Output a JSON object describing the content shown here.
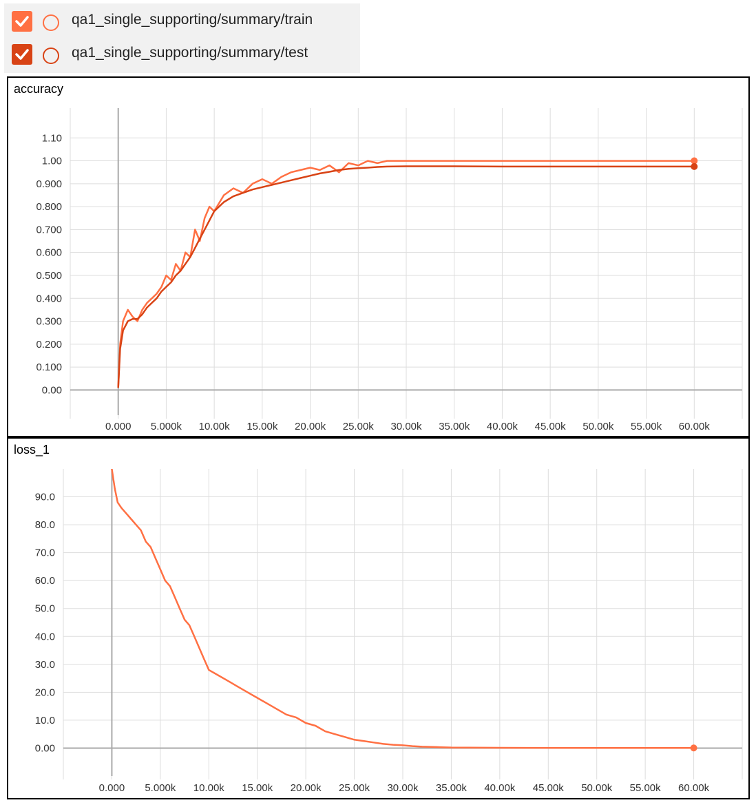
{
  "legend": {
    "runs": [
      {
        "label": "qa1_single_supporting/summary/train",
        "color": "#ff7043",
        "checked": true
      },
      {
        "label": "qa1_single_supporting/summary/test",
        "color": "#d84315",
        "checked": true
      }
    ]
  },
  "chart_data": [
    {
      "type": "line",
      "title": "accuracy",
      "xlabel": "",
      "ylabel": "",
      "x_ticks": [
        "0.000",
        "5.000k",
        "10.00k",
        "15.00k",
        "20.00k",
        "25.00k",
        "30.00k",
        "35.00k",
        "40.00k",
        "45.00k",
        "50.00k",
        "55.00k",
        "60.00k"
      ],
      "y_ticks": [
        "0.00",
        "0.100",
        "0.200",
        "0.300",
        "0.400",
        "0.500",
        "0.600",
        "0.700",
        "0.800",
        "0.900",
        "1.00",
        "1.10"
      ],
      "xlim": [
        -5000,
        65000
      ],
      "ylim": [
        -0.11,
        1.23
      ],
      "grid": true,
      "series": [
        {
          "name": "qa1_single_supporting/summary/train",
          "color": "#ff7043",
          "x": [
            0,
            200,
            500,
            1000,
            1500,
            2000,
            2500,
            3000,
            3500,
            4000,
            4500,
            5000,
            5500,
            6000,
            6500,
            7000,
            7500,
            8000,
            8500,
            9000,
            9500,
            10000,
            11000,
            12000,
            13000,
            14000,
            15000,
            16000,
            17000,
            18000,
            19000,
            20000,
            21000,
            22000,
            23000,
            24000,
            25000,
            26000,
            27000,
            28000,
            30000,
            35000,
            40000,
            50000,
            60000
          ],
          "y": [
            0.01,
            0.2,
            0.3,
            0.35,
            0.32,
            0.3,
            0.35,
            0.38,
            0.4,
            0.42,
            0.45,
            0.5,
            0.48,
            0.55,
            0.52,
            0.6,
            0.58,
            0.7,
            0.65,
            0.75,
            0.8,
            0.78,
            0.85,
            0.88,
            0.86,
            0.9,
            0.92,
            0.9,
            0.93,
            0.95,
            0.96,
            0.97,
            0.96,
            0.98,
            0.95,
            0.99,
            0.98,
            1.0,
            0.99,
            1.0,
            1.0,
            1.0,
            1.0,
            1.0,
            1.0
          ]
        },
        {
          "name": "qa1_single_supporting/summary/test",
          "color": "#d84315",
          "x": [
            0,
            200,
            500,
            1000,
            1500,
            2000,
            2500,
            3000,
            3500,
            4000,
            4500,
            5000,
            5500,
            6000,
            6500,
            7000,
            7500,
            8000,
            8500,
            9000,
            9500,
            10000,
            11000,
            12000,
            13000,
            14000,
            15000,
            16000,
            17000,
            18000,
            19000,
            20000,
            21000,
            22000,
            23000,
            24000,
            25000,
            26000,
            27000,
            28000,
            30000,
            35000,
            40000,
            50000,
            60000
          ],
          "y": [
            0.01,
            0.18,
            0.26,
            0.3,
            0.31,
            0.31,
            0.33,
            0.36,
            0.38,
            0.4,
            0.43,
            0.45,
            0.47,
            0.5,
            0.52,
            0.55,
            0.58,
            0.62,
            0.66,
            0.7,
            0.74,
            0.78,
            0.82,
            0.845,
            0.86,
            0.875,
            0.885,
            0.895,
            0.905,
            0.915,
            0.925,
            0.935,
            0.945,
            0.952,
            0.96,
            0.965,
            0.968,
            0.97,
            0.973,
            0.975,
            0.976,
            0.976,
            0.975,
            0.975,
            0.975
          ]
        }
      ]
    },
    {
      "type": "line",
      "title": "loss_1",
      "xlabel": "",
      "ylabel": "",
      "x_ticks": [
        "0.000",
        "5.000k",
        "10.00k",
        "15.00k",
        "20.00k",
        "25.00k",
        "30.00k",
        "35.00k",
        "40.00k",
        "45.00k",
        "50.00k",
        "55.00k",
        "60.00k"
      ],
      "y_ticks": [
        "0.00",
        "10.0",
        "20.0",
        "30.0",
        "40.0",
        "50.0",
        "60.0",
        "70.0",
        "80.0",
        "90.0"
      ],
      "xlim": [
        -5000,
        65000
      ],
      "ylim": [
        -10,
        100
      ],
      "grid": true,
      "series": [
        {
          "name": "qa1_single_supporting/summary/train",
          "color": "#ff7043",
          "x": [
            0,
            300,
            600,
            1000,
            1500,
            2000,
            2500,
            3000,
            3500,
            4000,
            4500,
            5000,
            5500,
            6000,
            6500,
            7000,
            7500,
            8000,
            8500,
            9000,
            9500,
            10000,
            11000,
            12000,
            13000,
            14000,
            15000,
            16000,
            17000,
            18000,
            19000,
            20000,
            21000,
            22000,
            23000,
            24000,
            25000,
            26000,
            27000,
            28000,
            29000,
            30000,
            31000,
            32000,
            33000,
            34000,
            35000,
            40000,
            50000,
            60000
          ],
          "y": [
            100,
            93,
            88,
            86,
            84,
            82,
            80,
            78,
            74,
            72,
            68,
            64,
            60,
            58,
            54,
            50,
            46,
            44,
            40,
            36,
            32,
            28,
            26,
            24,
            22,
            20,
            18,
            16,
            14,
            12,
            11,
            9,
            8,
            6,
            5,
            4,
            3,
            2.5,
            2,
            1.5,
            1.2,
            1,
            0.7,
            0.5,
            0.4,
            0.3,
            0.2,
            0.1,
            0.05,
            0.05
          ]
        }
      ]
    }
  ]
}
